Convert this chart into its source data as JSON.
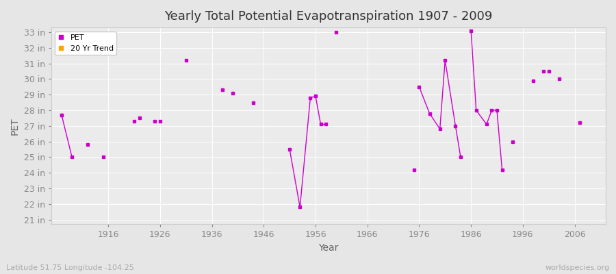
{
  "title": "Yearly Total Potential Evapotranspiration 1907 - 2009",
  "xlabel": "Year",
  "ylabel": "PET",
  "subtitle": "Latitude 51.75 Longitude -104.25",
  "watermark": "worldspecies.org",
  "bg_color": "#e6e6e6",
  "plot_bg_color": "#ebebeb",
  "grid_color": "#ffffff",
  "line_color": "#cc00cc",
  "trend_color": "#ffa500",
  "ylim_min": 21,
  "ylim_max": 33.3,
  "yticks": [
    21,
    22,
    23,
    24,
    25,
    26,
    27,
    28,
    29,
    30,
    31,
    32,
    33
  ],
  "ytick_labels": [
    "21 in",
    "22 in",
    "23 in",
    "24 in",
    "25 in",
    "26 in",
    "27 in",
    "28 in",
    "29 in",
    "30 in",
    "31 in",
    "32 in",
    "33 in"
  ],
  "xlim_min": 1905,
  "xlim_max": 2012,
  "xticks": [
    1916,
    1926,
    1936,
    1946,
    1956,
    1966,
    1976,
    1986,
    1996,
    2006
  ],
  "isolated_points": [
    [
      1907,
      27.7
    ],
    [
      1912,
      25.8
    ],
    [
      1915,
      25.0
    ],
    [
      1921,
      27.3
    ],
    [
      1922,
      27.5
    ],
    [
      1925,
      27.3
    ],
    [
      1926,
      27.3
    ],
    [
      1931,
      31.2
    ],
    [
      1938,
      29.3
    ],
    [
      1940,
      29.1
    ],
    [
      1944,
      28.5
    ],
    [
      1960,
      33.0
    ],
    [
      1975,
      24.2
    ],
    [
      1994,
      26.0
    ],
    [
      1998,
      29.9
    ],
    [
      2000,
      30.5
    ],
    [
      2001,
      30.5
    ],
    [
      2003,
      30.0
    ],
    [
      2007,
      27.2
    ]
  ],
  "connected_segments": [
    [
      [
        1907,
        27.7
      ],
      [
        1909,
        25.0
      ]
    ],
    [
      [
        1951,
        25.5
      ],
      [
        1953,
        21.8
      ],
      [
        1955,
        28.8
      ],
      [
        1956,
        28.9
      ],
      [
        1957,
        27.1
      ],
      [
        1958,
        27.1
      ]
    ],
    [
      [
        1976,
        29.5
      ],
      [
        1978,
        27.8
      ],
      [
        1980,
        26.8
      ],
      [
        1981,
        31.2
      ],
      [
        1983,
        27.0
      ],
      [
        1984,
        25.0
      ]
    ],
    [
      [
        1986,
        33.1
      ],
      [
        1987,
        28.0
      ],
      [
        1989,
        27.1
      ],
      [
        1990,
        28.0
      ],
      [
        1991,
        28.0
      ],
      [
        1992,
        24.2
      ]
    ]
  ]
}
